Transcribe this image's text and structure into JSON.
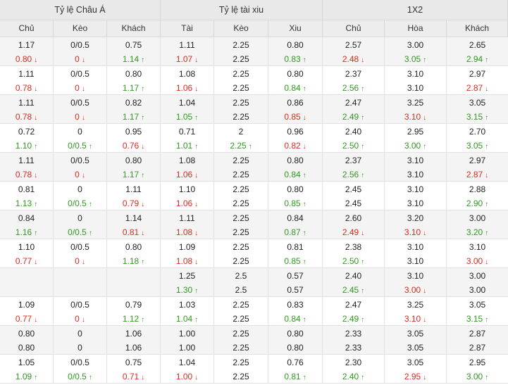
{
  "headers": {
    "groups": [
      "Tỷ lệ Châu Á",
      "Tỷ lệ tài xiu",
      "1X2"
    ],
    "columns": [
      "Chủ",
      "Kèo",
      "Khách",
      "Tài",
      "Kèo",
      "Xiu",
      "Chủ",
      "Hòa",
      "Khách"
    ]
  },
  "rows": [
    {
      "cells": [
        {
          "top": {
            "v": "1.17"
          },
          "bot": {
            "v": "0.80",
            "d": "down"
          }
        },
        {
          "top": {
            "v": "0/0.5"
          },
          "bot": {
            "v": "0",
            "d": "down"
          }
        },
        {
          "top": {
            "v": "0.75"
          },
          "bot": {
            "v": "1.14",
            "d": "up"
          }
        },
        {
          "top": {
            "v": "1.11"
          },
          "bot": {
            "v": "1.07",
            "d": "down"
          }
        },
        {
          "top": {
            "v": "2.25"
          },
          "bot": {
            "v": "2.25"
          }
        },
        {
          "top": {
            "v": "0.80"
          },
          "bot": {
            "v": "0.83",
            "d": "up"
          }
        },
        {
          "top": {
            "v": "2.57"
          },
          "bot": {
            "v": "2.48",
            "d": "down"
          }
        },
        {
          "top": {
            "v": "3.00"
          },
          "bot": {
            "v": "3.05",
            "d": "up"
          }
        },
        {
          "top": {
            "v": "2.65"
          },
          "bot": {
            "v": "2.94",
            "d": "up"
          }
        }
      ]
    },
    {
      "cells": [
        {
          "top": {
            "v": "1.11"
          },
          "bot": {
            "v": "0.78",
            "d": "down"
          }
        },
        {
          "top": {
            "v": "0/0.5"
          },
          "bot": {
            "v": "0",
            "d": "down"
          }
        },
        {
          "top": {
            "v": "0.80"
          },
          "bot": {
            "v": "1.17",
            "d": "up"
          }
        },
        {
          "top": {
            "v": "1.08"
          },
          "bot": {
            "v": "1.06",
            "d": "down"
          }
        },
        {
          "top": {
            "v": "2.25"
          },
          "bot": {
            "v": "2.25"
          }
        },
        {
          "top": {
            "v": "0.80"
          },
          "bot": {
            "v": "0.84",
            "d": "up"
          }
        },
        {
          "top": {
            "v": "2.37"
          },
          "bot": {
            "v": "2.56",
            "d": "up"
          }
        },
        {
          "top": {
            "v": "3.10"
          },
          "bot": {
            "v": "3.10"
          }
        },
        {
          "top": {
            "v": "2.97"
          },
          "bot": {
            "v": "2.87",
            "d": "down"
          }
        }
      ]
    },
    {
      "cells": [
        {
          "top": {
            "v": "1.11"
          },
          "bot": {
            "v": "0.78",
            "d": "down"
          }
        },
        {
          "top": {
            "v": "0/0.5"
          },
          "bot": {
            "v": "0",
            "d": "down"
          }
        },
        {
          "top": {
            "v": "0.82"
          },
          "bot": {
            "v": "1.17",
            "d": "up"
          }
        },
        {
          "top": {
            "v": "1.04"
          },
          "bot": {
            "v": "1.05",
            "d": "up"
          }
        },
        {
          "top": {
            "v": "2.25"
          },
          "bot": {
            "v": "2.25"
          }
        },
        {
          "top": {
            "v": "0.86"
          },
          "bot": {
            "v": "0.85",
            "d": "down"
          }
        },
        {
          "top": {
            "v": "2.47"
          },
          "bot": {
            "v": "2.49",
            "d": "up"
          }
        },
        {
          "top": {
            "v": "3.25"
          },
          "bot": {
            "v": "3.10",
            "d": "down"
          }
        },
        {
          "top": {
            "v": "3.05"
          },
          "bot": {
            "v": "3.15",
            "d": "up"
          }
        }
      ]
    },
    {
      "cells": [
        {
          "top": {
            "v": "0.72"
          },
          "bot": {
            "v": "1.10",
            "d": "up"
          }
        },
        {
          "top": {
            "v": "0"
          },
          "bot": {
            "v": "0/0.5",
            "d": "up"
          }
        },
        {
          "top": {
            "v": "0.95"
          },
          "bot": {
            "v": "0.76",
            "d": "down"
          }
        },
        {
          "top": {
            "v": "0.71"
          },
          "bot": {
            "v": "1.01",
            "d": "up"
          }
        },
        {
          "top": {
            "v": "2"
          },
          "bot": {
            "v": "2.25",
            "d": "up"
          }
        },
        {
          "top": {
            "v": "0.96"
          },
          "bot": {
            "v": "0.82",
            "d": "down"
          }
        },
        {
          "top": {
            "v": "2.40"
          },
          "bot": {
            "v": "2.50",
            "d": "up"
          }
        },
        {
          "top": {
            "v": "2.95"
          },
          "bot": {
            "v": "3.00",
            "d": "up"
          }
        },
        {
          "top": {
            "v": "2.70"
          },
          "bot": {
            "v": "3.05",
            "d": "up"
          }
        }
      ]
    },
    {
      "cells": [
        {
          "top": {
            "v": "1.11"
          },
          "bot": {
            "v": "0.78",
            "d": "down"
          }
        },
        {
          "top": {
            "v": "0/0.5"
          },
          "bot": {
            "v": "0",
            "d": "down"
          }
        },
        {
          "top": {
            "v": "0.80"
          },
          "bot": {
            "v": "1.17",
            "d": "up"
          }
        },
        {
          "top": {
            "v": "1.08"
          },
          "bot": {
            "v": "1.06",
            "d": "down"
          }
        },
        {
          "top": {
            "v": "2.25"
          },
          "bot": {
            "v": "2.25"
          }
        },
        {
          "top": {
            "v": "0.80"
          },
          "bot": {
            "v": "0.84",
            "d": "up"
          }
        },
        {
          "top": {
            "v": "2.37"
          },
          "bot": {
            "v": "2.56",
            "d": "up"
          }
        },
        {
          "top": {
            "v": "3.10"
          },
          "bot": {
            "v": "3.10"
          }
        },
        {
          "top": {
            "v": "2.97"
          },
          "bot": {
            "v": "2.87",
            "d": "down"
          }
        }
      ]
    },
    {
      "cells": [
        {
          "top": {
            "v": "0.81"
          },
          "bot": {
            "v": "1.13",
            "d": "up"
          }
        },
        {
          "top": {
            "v": "0"
          },
          "bot": {
            "v": "0/0.5",
            "d": "up"
          }
        },
        {
          "top": {
            "v": "1.11"
          },
          "bot": {
            "v": "0.79",
            "d": "down"
          }
        },
        {
          "top": {
            "v": "1.10"
          },
          "bot": {
            "v": "1.06",
            "d": "down"
          }
        },
        {
          "top": {
            "v": "2.25"
          },
          "bot": {
            "v": "2.25"
          }
        },
        {
          "top": {
            "v": "0.80"
          },
          "bot": {
            "v": "0.85",
            "d": "up"
          }
        },
        {
          "top": {
            "v": "2.45"
          },
          "bot": {
            "v": "2.45"
          }
        },
        {
          "top": {
            "v": "3.10"
          },
          "bot": {
            "v": "3.10"
          }
        },
        {
          "top": {
            "v": "2.88"
          },
          "bot": {
            "v": "2.90",
            "d": "up"
          }
        }
      ]
    },
    {
      "cells": [
        {
          "top": {
            "v": "0.84"
          },
          "bot": {
            "v": "1.16",
            "d": "up"
          }
        },
        {
          "top": {
            "v": "0"
          },
          "bot": {
            "v": "0/0.5",
            "d": "up"
          }
        },
        {
          "top": {
            "v": "1.14"
          },
          "bot": {
            "v": "0.81",
            "d": "down"
          }
        },
        {
          "top": {
            "v": "1.11"
          },
          "bot": {
            "v": "1.08",
            "d": "down"
          }
        },
        {
          "top": {
            "v": "2.25"
          },
          "bot": {
            "v": "2.25"
          }
        },
        {
          "top": {
            "v": "0.84"
          },
          "bot": {
            "v": "0.87",
            "d": "up"
          }
        },
        {
          "top": {
            "v": "2.60"
          },
          "bot": {
            "v": "2.49",
            "d": "down"
          }
        },
        {
          "top": {
            "v": "3.20"
          },
          "bot": {
            "v": "3.10",
            "d": "down"
          }
        },
        {
          "top": {
            "v": "3.00"
          },
          "bot": {
            "v": "3.20",
            "d": "up"
          }
        }
      ]
    },
    {
      "cells": [
        {
          "top": {
            "v": "1.10"
          },
          "bot": {
            "v": "0.77",
            "d": "down"
          }
        },
        {
          "top": {
            "v": "0/0.5"
          },
          "bot": {
            "v": "0",
            "d": "down"
          }
        },
        {
          "top": {
            "v": "0.80"
          },
          "bot": {
            "v": "1.18",
            "d": "up"
          }
        },
        {
          "top": {
            "v": "1.09"
          },
          "bot": {
            "v": "1.08",
            "d": "down"
          }
        },
        {
          "top": {
            "v": "2.25"
          },
          "bot": {
            "v": "2.25"
          }
        },
        {
          "top": {
            "v": "0.81"
          },
          "bot": {
            "v": "0.85",
            "d": "up"
          }
        },
        {
          "top": {
            "v": "2.38"
          },
          "bot": {
            "v": "2.50",
            "d": "up"
          }
        },
        {
          "top": {
            "v": "3.10"
          },
          "bot": {
            "v": "3.10"
          }
        },
        {
          "top": {
            "v": "3.10"
          },
          "bot": {
            "v": "3.00",
            "d": "down"
          }
        }
      ]
    },
    {
      "cells": [
        {
          "top": {
            "v": ""
          },
          "bot": {
            "v": ""
          }
        },
        {
          "top": {
            "v": ""
          },
          "bot": {
            "v": ""
          }
        },
        {
          "top": {
            "v": ""
          },
          "bot": {
            "v": ""
          }
        },
        {
          "top": {
            "v": "1.25"
          },
          "bot": {
            "v": "1.30",
            "d": "up"
          }
        },
        {
          "top": {
            "v": "2.5"
          },
          "bot": {
            "v": "2.5"
          }
        },
        {
          "top": {
            "v": "0.57"
          },
          "bot": {
            "v": "0.57"
          }
        },
        {
          "top": {
            "v": "2.40"
          },
          "bot": {
            "v": "2.45",
            "d": "up"
          }
        },
        {
          "top": {
            "v": "3.10"
          },
          "bot": {
            "v": "3.00",
            "d": "down"
          }
        },
        {
          "top": {
            "v": "3.00"
          },
          "bot": {
            "v": "3.00"
          }
        }
      ]
    },
    {
      "cells": [
        {
          "top": {
            "v": "1.09"
          },
          "bot": {
            "v": "0.77",
            "d": "down"
          }
        },
        {
          "top": {
            "v": "0/0.5"
          },
          "bot": {
            "v": "0",
            "d": "down"
          }
        },
        {
          "top": {
            "v": "0.79"
          },
          "bot": {
            "v": "1.12",
            "d": "up"
          }
        },
        {
          "top": {
            "v": "1.03"
          },
          "bot": {
            "v": "1.04",
            "d": "up"
          }
        },
        {
          "top": {
            "v": "2.25"
          },
          "bot": {
            "v": "2.25"
          }
        },
        {
          "top": {
            "v": "0.83"
          },
          "bot": {
            "v": "0.84",
            "d": "up"
          }
        },
        {
          "top": {
            "v": "2.47"
          },
          "bot": {
            "v": "2.49",
            "d": "up"
          }
        },
        {
          "top": {
            "v": "3.25"
          },
          "bot": {
            "v": "3.10",
            "d": "down"
          }
        },
        {
          "top": {
            "v": "3.05"
          },
          "bot": {
            "v": "3.15",
            "d": "up"
          }
        }
      ]
    },
    {
      "cells": [
        {
          "top": {
            "v": "0.80"
          },
          "bot": {
            "v": "0.80"
          }
        },
        {
          "top": {
            "v": "0"
          },
          "bot": {
            "v": "0"
          }
        },
        {
          "top": {
            "v": "1.06"
          },
          "bot": {
            "v": "1.06"
          }
        },
        {
          "top": {
            "v": "1.00"
          },
          "bot": {
            "v": "1.00"
          }
        },
        {
          "top": {
            "v": "2.25"
          },
          "bot": {
            "v": "2.25"
          }
        },
        {
          "top": {
            "v": "0.80"
          },
          "bot": {
            "v": "0.80"
          }
        },
        {
          "top": {
            "v": "2.33"
          },
          "bot": {
            "v": "2.33"
          }
        },
        {
          "top": {
            "v": "3.05"
          },
          "bot": {
            "v": "3.05"
          }
        },
        {
          "top": {
            "v": "2.87"
          },
          "bot": {
            "v": "2.87"
          }
        }
      ]
    },
    {
      "cells": [
        {
          "top": {
            "v": "1.05"
          },
          "bot": {
            "v": "1.09",
            "d": "up"
          }
        },
        {
          "top": {
            "v": "0/0.5"
          },
          "bot": {
            "v": "0/0.5",
            "d": "up"
          }
        },
        {
          "top": {
            "v": "0.75"
          },
          "bot": {
            "v": "0.71",
            "d": "down"
          }
        },
        {
          "top": {
            "v": "1.04"
          },
          "bot": {
            "v": "1.00",
            "d": "down"
          }
        },
        {
          "top": {
            "v": "2.25"
          },
          "bot": {
            "v": "2.25"
          }
        },
        {
          "top": {
            "v": "0.76"
          },
          "bot": {
            "v": "0.81",
            "d": "up"
          }
        },
        {
          "top": {
            "v": "2.30"
          },
          "bot": {
            "v": "2.40",
            "d": "up"
          }
        },
        {
          "top": {
            "v": "3.05"
          },
          "bot": {
            "v": "2.95",
            "d": "down"
          }
        },
        {
          "top": {
            "v": "2.95"
          },
          "bot": {
            "v": "3.00",
            "d": "up"
          }
        }
      ]
    }
  ]
}
